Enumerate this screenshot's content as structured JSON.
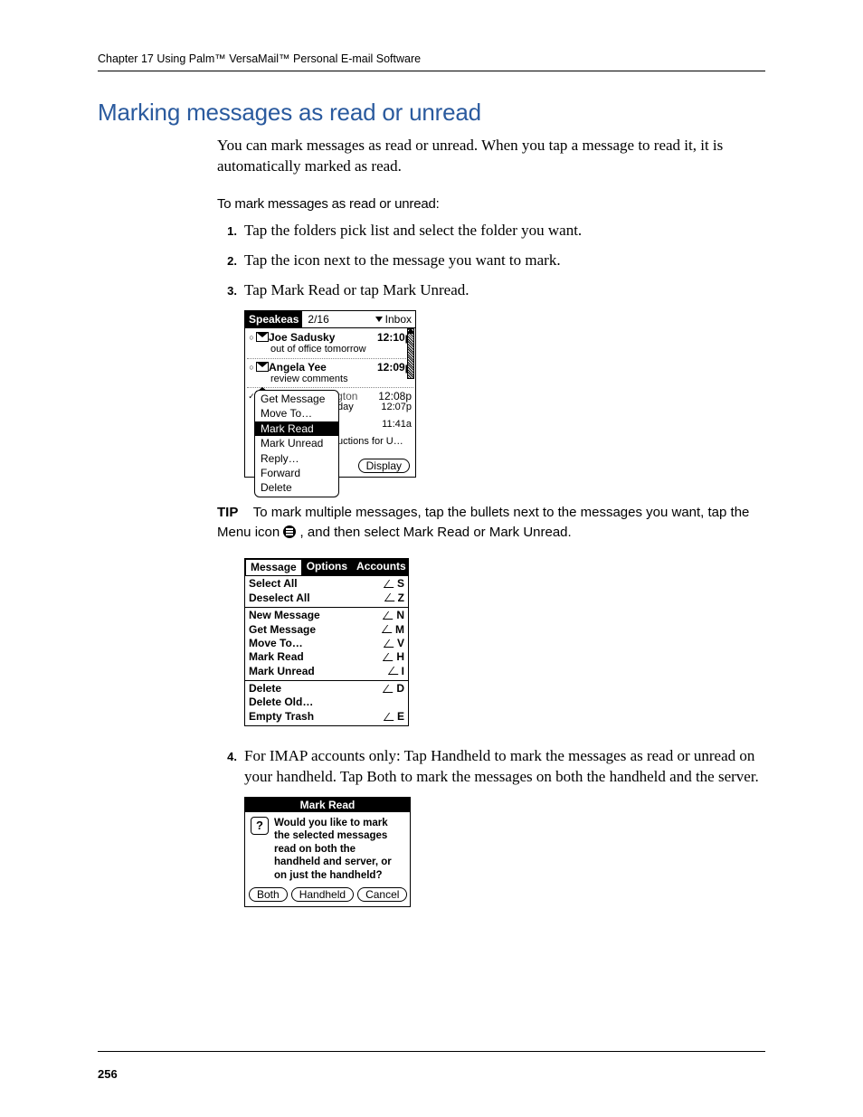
{
  "colors": {
    "section_title": "#2a5a9e",
    "text": "#000000",
    "bg": "#ffffff"
  },
  "header": {
    "running": "Chapter 17   Using Palm™ VersaMail™ Personal E-mail Software"
  },
  "section": {
    "title": "Marking messages as read or unread",
    "intro": "You can mark messages as read or unread. When you tap a message to read it, it is automatically marked as read.",
    "subhead": "To mark messages as read or unread:"
  },
  "steps": {
    "one": {
      "num": "1.",
      "text": "Tap the folders pick list and select the folder you want."
    },
    "two": {
      "num": "2.",
      "text": "Tap the icon next to the message you want to mark."
    },
    "three": {
      "num": "3.",
      "text": "Tap Mark Read or tap Mark Unread."
    },
    "four": {
      "num": "4.",
      "text": "For IMAP accounts only: Tap Handheld to mark the messages as read or unread on your handheld. Tap Both to mark the messages on both the handheld and the server."
    }
  },
  "tip": {
    "label": "TIP",
    "before": "To mark multiple messages, tap the bullets next to the messages you want, tap the Menu icon ",
    "after": ", and then select Mark Read or Mark Unread."
  },
  "shot1": {
    "account": "Speakeas",
    "count": "2/16",
    "folder": "Inbox",
    "rows": [
      {
        "sender": "Joe Sadusky",
        "subject": "out of office tomorrow",
        "time": "12:10p",
        "unread": true,
        "bullet": "○",
        "icon": "env"
      },
      {
        "sender": "Angela Yee",
        "subject": "review comments",
        "time": "12:09p",
        "unread": true,
        "bullet": "○",
        "icon": "env"
      },
      {
        "sender": "Travis Washington",
        "subject": "",
        "time": "12:08p",
        "unread": false,
        "bullet": "✓",
        "icon": "open"
      }
    ],
    "under_rows": [
      {
        "frag": "day",
        "time": "12:07p"
      },
      {
        "frag": "",
        "time": "11:41a"
      },
      {
        "frag": "uctions for U…",
        "time": ""
      }
    ],
    "context_menu": [
      "Get Message",
      "Move To…",
      "Mark Read",
      "Mark Unread",
      "Reply…",
      "Forward",
      "Delete"
    ],
    "context_selected_index": 2,
    "display_button": "Display"
  },
  "shot2": {
    "tabs": [
      "Message",
      "Options",
      "Accounts"
    ],
    "active_tab_index": 0,
    "groups": [
      [
        {
          "label": "Select All",
          "sc": "S"
        },
        {
          "label": "Deselect All",
          "sc": "Z"
        }
      ],
      [
        {
          "label": "New Message",
          "sc": "N"
        },
        {
          "label": "Get Message",
          "sc": "M"
        },
        {
          "label": "Move To…",
          "sc": "V"
        },
        {
          "label": "Mark Read",
          "sc": "H"
        },
        {
          "label": "Mark Unread",
          "sc": "I"
        }
      ],
      [
        {
          "label": "Delete",
          "sc": "D"
        },
        {
          "label": "Delete Old…",
          "sc": ""
        },
        {
          "label": "Empty Trash",
          "sc": "E"
        }
      ]
    ]
  },
  "shot3": {
    "title": "Mark Read",
    "body": "Would you like to mark the selected messages read on both the handheld and server, or on just the handheld?",
    "buttons": [
      "Both",
      "Handheld",
      "Cancel"
    ]
  },
  "footer": {
    "page": "256"
  }
}
